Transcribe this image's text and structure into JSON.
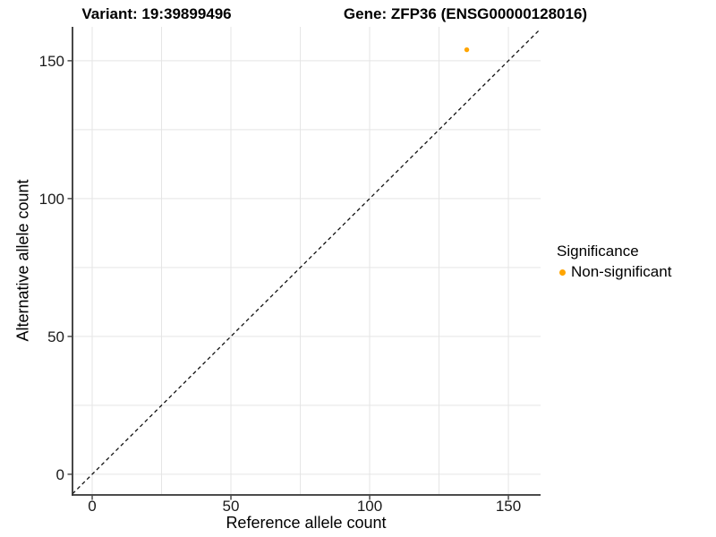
{
  "header": {
    "title_left": "Variant: 19:39899496",
    "title_right": "Gene: ZFP36 (ENSG00000128016)"
  },
  "colors": {
    "point_orange": "#FFA500",
    "grid": "#e5e5e5",
    "axis_line": "#333333",
    "tick_label": "#1a1a1a",
    "diagonal": "#111111",
    "background": "#ffffff"
  },
  "chart_data": {
    "type": "scatter",
    "title": "Variant: 19:39899496   Gene: ZFP36 (ENSG00000128016)",
    "xlabel": "Reference allele count",
    "ylabel": "Alternative allele count",
    "x_ticks": [
      0,
      50,
      100,
      150
    ],
    "y_ticks": [
      0,
      50,
      100,
      150
    ],
    "xlim": [
      -7.1,
      161.6
    ],
    "ylim": [
      -7.5,
      162.3
    ],
    "grid": "major and minor every 25, light gray",
    "minor_step": 25,
    "points": [
      {
        "x": 135,
        "y": 154,
        "series": "Non-significant"
      }
    ],
    "series": [
      {
        "name": "Non-significant",
        "color": "#FFA500"
      }
    ],
    "reference_line": {
      "slope": 1,
      "intercept": 0,
      "style": "dashed",
      "color": "#111111"
    },
    "legend": {
      "title": "Significance",
      "position": "right",
      "entries": [
        {
          "label": "Non-significant",
          "color": "#FFA500"
        }
      ]
    }
  }
}
